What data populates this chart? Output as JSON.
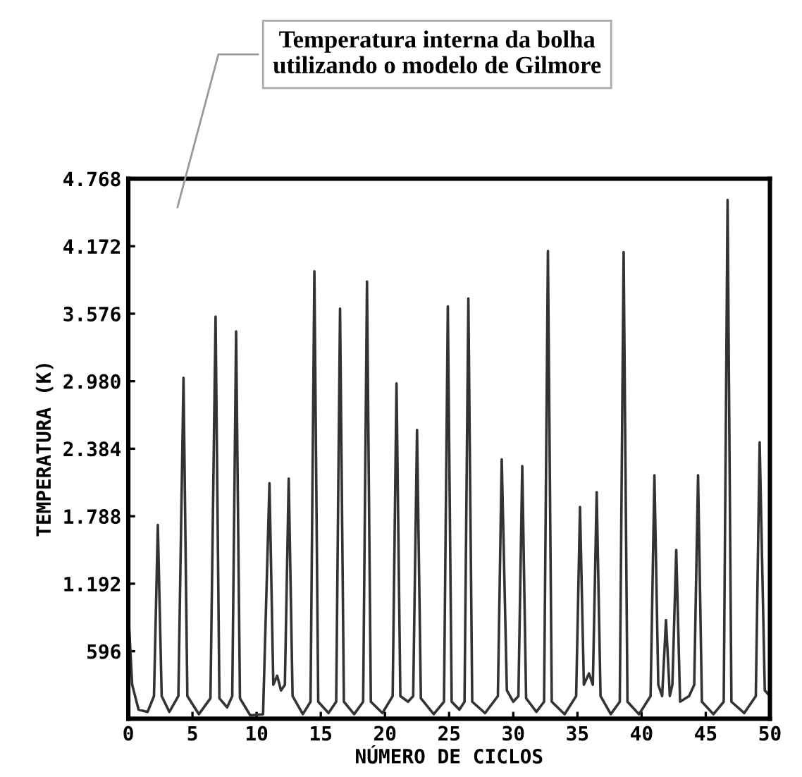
{
  "chart_data": {
    "type": "line",
    "xlabel": "NÚMERO DE CICLOS",
    "ylabel": "TEMPERATURA (K)",
    "annotations": [
      "Temperatura interna da bolha utilizando o modelo de Gilmore"
    ],
    "xlim": [
      0,
      50
    ],
    "xticks": [
      0,
      5,
      10,
      15,
      20,
      25,
      30,
      35,
      40,
      45,
      50
    ],
    "ylim": [
      0,
      4768
    ],
    "yticks": [
      {
        "value": 596,
        "label": "596"
      },
      {
        "value": 1192,
        "label": "1.192"
      },
      {
        "value": 1788,
        "label": "1.788"
      },
      {
        "value": 2384,
        "label": "2.384"
      },
      {
        "value": 2980,
        "label": "2.980"
      },
      {
        "value": 3576,
        "label": "3.576"
      },
      {
        "value": 4172,
        "label": "4.172"
      },
      {
        "value": 4768,
        "label": "4.768"
      }
    ],
    "grid": false,
    "marker": "none",
    "line_style": "solid",
    "series": [
      {
        "color": "#333333",
        "x": [
          0,
          0.3,
          0.8,
          1.5,
          2.0,
          2.3,
          2.6,
          3.2,
          3.9,
          4.3,
          4.6,
          5.5,
          6.4,
          6.8,
          7.1,
          7.7,
          8.1,
          8.4,
          8.7,
          9.5,
          10.5,
          11.0,
          11.3,
          11.6,
          11.9,
          12.2,
          12.5,
          12.8,
          13.6,
          14.2,
          14.5,
          14.8,
          15.6,
          16.2,
          16.5,
          16.8,
          17.6,
          18.3,
          18.6,
          18.9,
          19.8,
          20.6,
          20.9,
          21.2,
          21.8,
          22.2,
          22.5,
          22.8,
          23.8,
          24.6,
          24.9,
          25.2,
          25.8,
          26.2,
          26.5,
          26.8,
          27.8,
          28.8,
          29.1,
          29.5,
          30.0,
          30.4,
          30.7,
          31.0,
          31.8,
          32.4,
          32.7,
          33.0,
          34.0,
          34.9,
          35.2,
          35.5,
          35.9,
          36.2,
          36.5,
          36.8,
          37.6,
          38.3,
          38.6,
          38.9,
          39.8,
          40.7,
          41.0,
          41.3,
          41.6,
          41.9,
          42.2,
          42.4,
          42.7,
          43.0,
          43.7,
          44.1,
          44.4,
          44.7,
          45.6,
          46.4,
          46.7,
          47.0,
          48.0,
          48.9,
          49.2,
          49.6,
          50
        ],
        "values": [
          940,
          300,
          80,
          60,
          200,
          1710,
          200,
          60,
          200,
          3010,
          200,
          40,
          180,
          3550,
          180,
          100,
          200,
          3420,
          180,
          30,
          40,
          2080,
          300,
          380,
          250,
          300,
          2120,
          200,
          40,
          150,
          3950,
          150,
          50,
          150,
          3620,
          150,
          40,
          150,
          3860,
          150,
          50,
          200,
          2960,
          200,
          150,
          200,
          2550,
          180,
          40,
          150,
          3640,
          150,
          80,
          150,
          3710,
          150,
          50,
          200,
          2290,
          250,
          150,
          200,
          2230,
          180,
          60,
          150,
          4130,
          150,
          40,
          200,
          1870,
          300,
          400,
          300,
          2000,
          200,
          40,
          150,
          4120,
          150,
          40,
          200,
          2150,
          300,
          200,
          870,
          200,
          300,
          1490,
          150,
          200,
          300,
          2150,
          150,
          40,
          150,
          4580,
          150,
          50,
          200,
          2440,
          250,
          200
        ]
      }
    ]
  }
}
